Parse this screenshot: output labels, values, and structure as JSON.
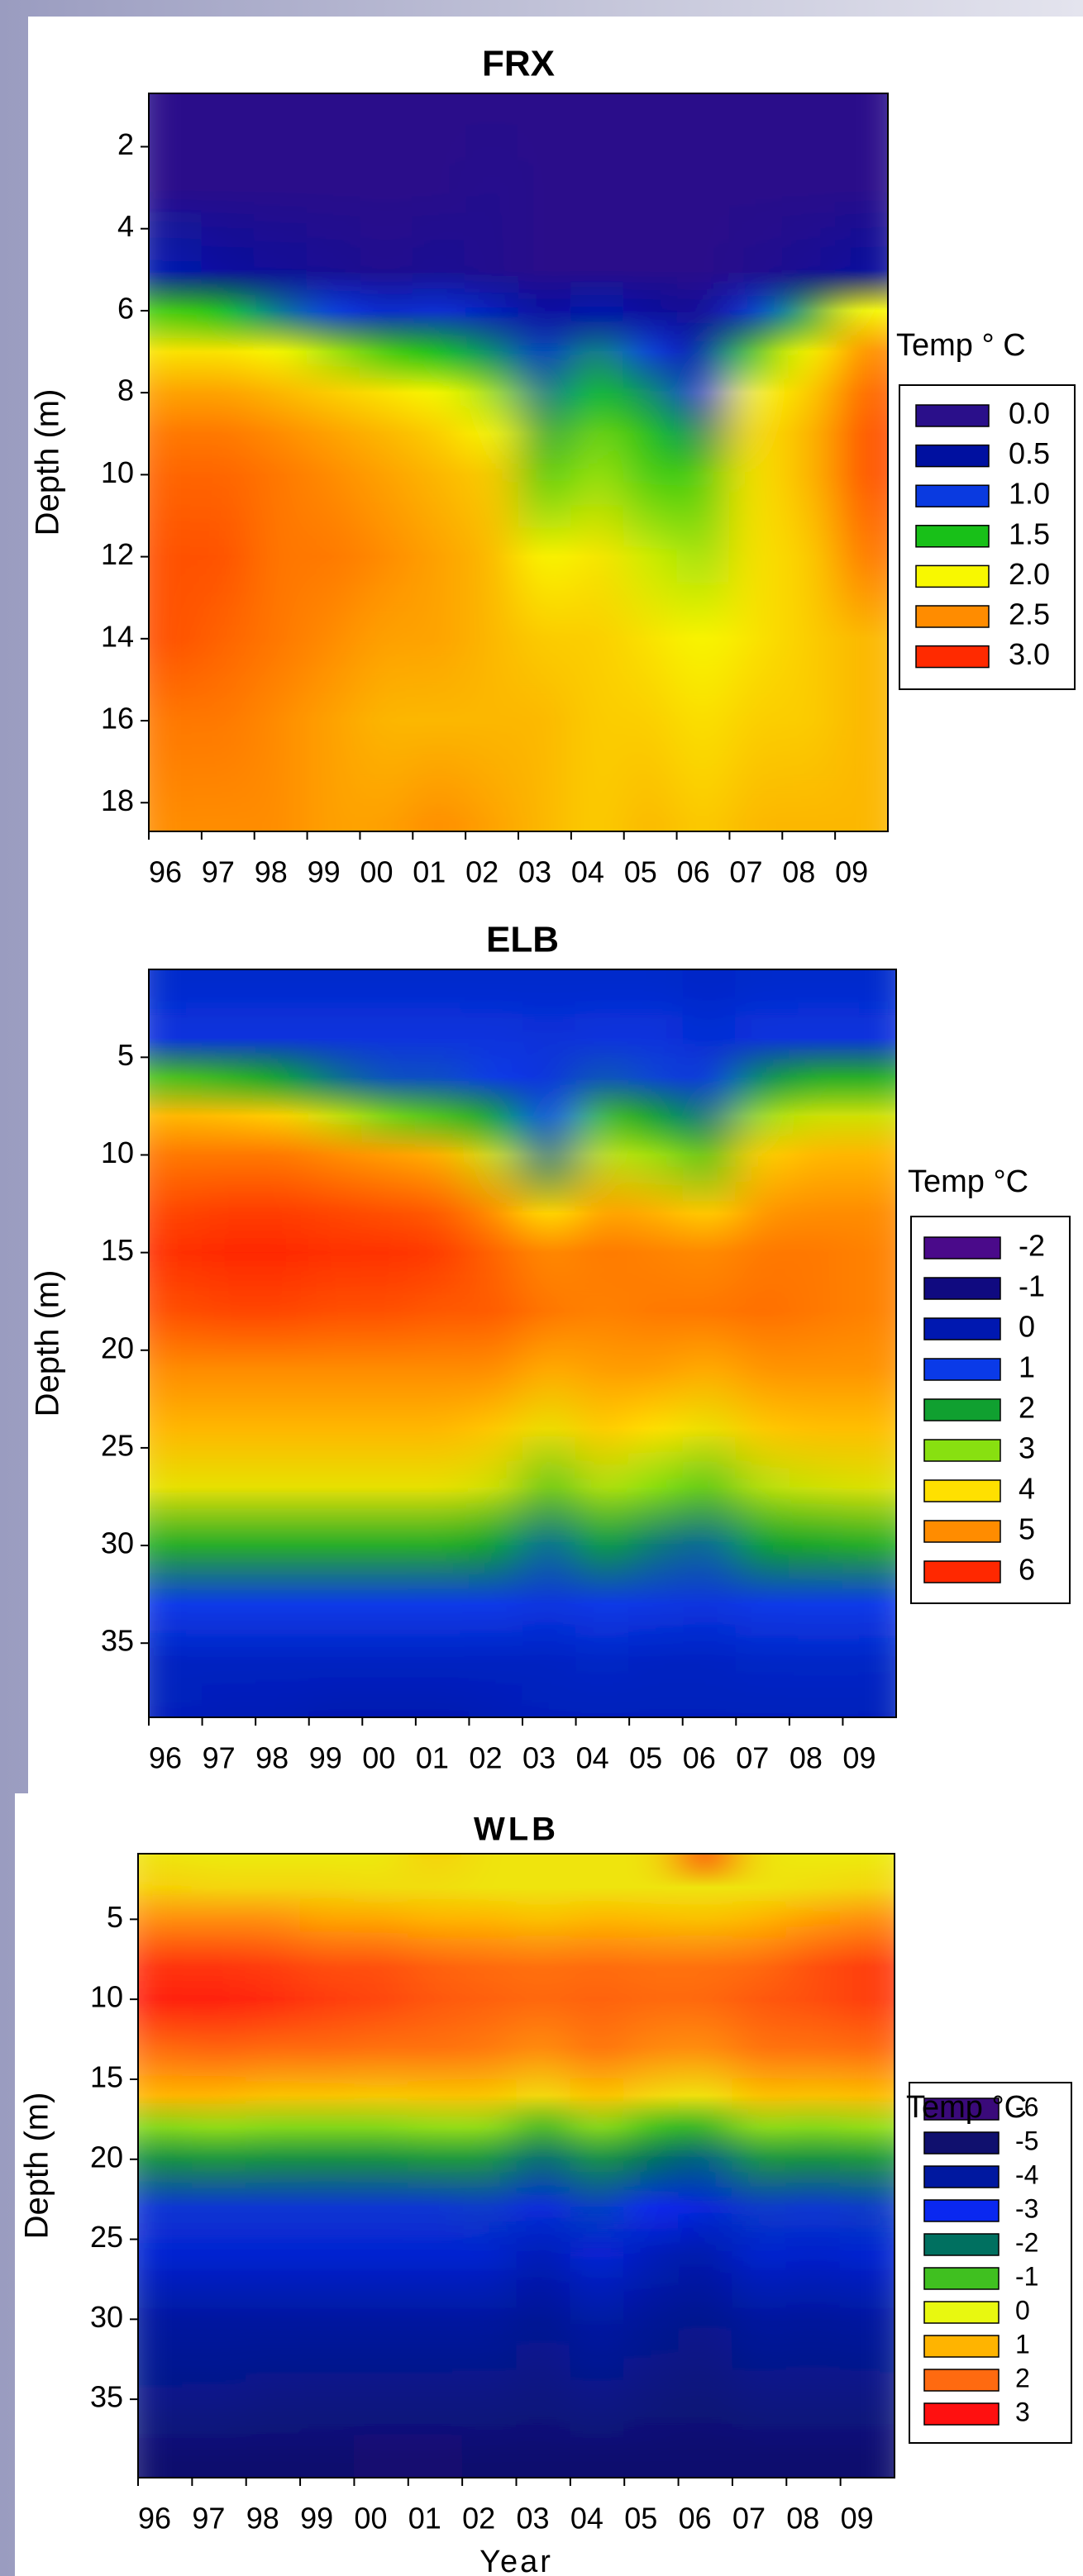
{
  "chart_data": [
    {
      "type": "contour",
      "title": "FRX",
      "ylabel": "Depth (m)",
      "legend_title": "Temp ° C",
      "categories": [
        "96",
        "97",
        "98",
        "99",
        "00",
        "01",
        "02",
        "03",
        "04",
        "05",
        "06",
        "07",
        "08",
        "09"
      ],
      "depths": [
        1,
        3,
        5,
        6,
        7,
        8,
        9,
        10,
        12,
        14,
        16,
        18.5
      ],
      "z": [
        [
          0,
          0,
          0.6,
          1.6,
          2.1,
          2.4,
          2.6,
          2.7,
          2.8,
          2.8,
          2.6,
          2.5
        ],
        [
          0,
          0,
          0.4,
          1.5,
          2.1,
          2.4,
          2.6,
          2.7,
          2.8,
          2.7,
          2.6,
          2.5
        ],
        [
          0,
          0,
          0.3,
          1.2,
          2.0,
          2.3,
          2.5,
          2.6,
          2.6,
          2.6,
          2.5,
          2.5
        ],
        [
          0,
          0,
          0.2,
          1.0,
          1.8,
          2.2,
          2.4,
          2.5,
          2.6,
          2.5,
          2.4,
          2.4
        ],
        [
          0,
          0,
          0.1,
          0.8,
          1.6,
          2.1,
          2.3,
          2.4,
          2.5,
          2.4,
          2.3,
          2.4
        ],
        [
          0,
          0,
          0.2,
          0.9,
          1.5,
          2.0,
          2.2,
          2.3,
          2.4,
          2.4,
          2.3,
          2.5
        ],
        [
          0,
          0.1,
          0.1,
          0.7,
          1.3,
          1.8,
          2.0,
          2.2,
          2.3,
          2.3,
          2.3,
          2.4
        ],
        [
          0,
          0,
          0,
          0.4,
          0.8,
          1.2,
          1.4,
          1.6,
          2.0,
          2.2,
          2.3,
          2.3
        ],
        [
          0,
          0,
          0,
          0.6,
          1.3,
          1.5,
          1.7,
          1.8,
          2.1,
          2.2,
          2.2,
          2.2
        ],
        [
          0,
          0,
          0,
          0.4,
          1.0,
          1.3,
          1.5,
          1.6,
          1.9,
          2.1,
          2.2,
          2.3
        ],
        [
          0,
          0,
          0,
          0.2,
          0.5,
          0.9,
          1.3,
          1.6,
          1.8,
          2.0,
          2.1,
          2.2
        ],
        [
          0,
          0,
          0.1,
          0.9,
          1.6,
          2.0,
          2.1,
          2.1,
          2.1,
          2.1,
          2.2,
          2.3
        ],
        [
          0,
          0,
          0.2,
          1.4,
          2.0,
          2.2,
          2.3,
          2.3,
          2.2,
          2.2,
          2.2,
          2.3
        ],
        [
          0,
          0,
          0.4,
          2.0,
          2.5,
          2.7,
          2.8,
          2.8,
          2.6,
          2.3,
          2.3,
          2.3
        ]
      ],
      "ylim": [
        0.7,
        18.7
      ],
      "yticks": [
        2,
        4,
        6,
        8,
        10,
        12,
        14,
        16,
        18
      ],
      "levels": [
        {
          "value": 0,
          "label": "0.0"
        },
        {
          "value": 0.5,
          "label": "0.5"
        },
        {
          "value": 1,
          "label": "1.0"
        },
        {
          "value": 1.5,
          "label": "1.5"
        },
        {
          "value": 2,
          "label": "2.0"
        },
        {
          "value": 2.5,
          "label": "2.5"
        },
        {
          "value": 3,
          "label": "3.0"
        }
      ],
      "level_colors": [
        "#2a0f8a",
        "#0010a0",
        "#0a3ae0",
        "#18c018",
        "#f8f800",
        "#ff8c00",
        "#ff2a00"
      ]
    },
    {
      "type": "contour",
      "title": "ELB",
      "ylabel": "Depth (m)",
      "legend_title": "Temp  °C",
      "categories": [
        "96",
        "97",
        "98",
        "99",
        "00",
        "01",
        "02",
        "03",
        "04",
        "05",
        "06",
        "07",
        "08",
        "09"
      ],
      "depths": [
        1,
        4,
        6,
        8,
        10,
        13,
        15,
        18,
        21,
        24,
        27,
        30,
        33,
        36,
        38.8
      ],
      "z": [
        [
          0.5,
          0.8,
          2.5,
          4.5,
          5.2,
          5.7,
          5.9,
          5.6,
          5.0,
          4.5,
          3.8,
          2.2,
          1.0,
          0.3,
          0.2
        ],
        [
          0.5,
          0.8,
          2.3,
          4.4,
          5.2,
          5.8,
          6.0,
          5.7,
          5.0,
          4.5,
          3.8,
          2.2,
          1.0,
          0.3,
          0.1
        ],
        [
          0.5,
          0.8,
          2.0,
          4.2,
          5.2,
          5.8,
          6.0,
          5.7,
          5.0,
          4.5,
          3.8,
          2.2,
          1.0,
          0.3,
          0.1
        ],
        [
          0.5,
          0.8,
          1.5,
          3.5,
          5.0,
          5.7,
          5.9,
          5.6,
          5.0,
          4.5,
          3.8,
          2.2,
          1.0,
          0.3,
          0.0
        ],
        [
          0.5,
          0.8,
          1.2,
          2.8,
          4.8,
          5.6,
          5.9,
          5.6,
          5.0,
          4.5,
          3.8,
          2.2,
          1.0,
          0.3,
          0.0
        ],
        [
          0.5,
          0.8,
          1.2,
          2.5,
          4.6,
          5.5,
          5.8,
          5.5,
          5.0,
          4.5,
          3.8,
          2.2,
          1.0,
          0.3,
          0.0
        ],
        [
          0.5,
          0.8,
          1.0,
          2.0,
          3.5,
          5.0,
          5.4,
          5.5,
          5.0,
          4.3,
          3.6,
          2.0,
          1.0,
          0.3,
          0.1
        ],
        [
          0.5,
          0.7,
          0.8,
          1.0,
          1.5,
          4.0,
          5.0,
          5.2,
          4.6,
          3.8,
          2.6,
          1.4,
          0.8,
          0.3,
          0.2
        ],
        [
          0.5,
          0.8,
          1.3,
          2.5,
          3.5,
          4.8,
          5.2,
          5.1,
          4.8,
          4.3,
          3.4,
          2.0,
          1.0,
          0.4,
          0.2
        ],
        [
          0.5,
          0.8,
          1.1,
          2.0,
          3.2,
          4.6,
          5.1,
          5.2,
          4.8,
          4.0,
          3.0,
          1.6,
          0.9,
          0.3,
          0.2
        ],
        [
          0.4,
          0.6,
          0.8,
          1.5,
          2.5,
          4.2,
          5.0,
          5.2,
          4.6,
          3.8,
          2.6,
          1.4,
          0.8,
          0.3,
          0.2
        ],
        [
          0.5,
          0.8,
          1.8,
          3.2,
          4.2,
          4.9,
          5.2,
          5.3,
          4.9,
          4.3,
          3.4,
          2.0,
          1.0,
          0.4,
          0.2
        ],
        [
          0.5,
          0.8,
          2.2,
          3.6,
          4.5,
          5.0,
          5.2,
          5.2,
          4.9,
          4.4,
          3.6,
          2.1,
          1.0,
          0.4,
          0.2
        ],
        [
          0.5,
          0.8,
          2.2,
          3.6,
          4.5,
          5.0,
          5.1,
          5.1,
          4.9,
          4.4,
          3.7,
          2.2,
          1.0,
          0.4,
          0.2
        ]
      ],
      "ylim": [
        0.5,
        38.8
      ],
      "yticks": [
        5,
        10,
        15,
        20,
        25,
        30,
        35
      ],
      "levels": [
        -2,
        -1,
        0,
        1,
        2,
        3,
        4,
        5,
        6
      ],
      "level_colors": [
        "#4a0a8a",
        "#100a80",
        "#0018b0",
        "#0a3ae8",
        "#10a030",
        "#88e010",
        "#ffe000",
        "#ff8c00",
        "#ff2800"
      ]
    },
    {
      "type": "contour",
      "title": "WLB",
      "ylabel": "Depth (m)",
      "legend_title": "Temp °C",
      "xlabel": "Year",
      "categories": [
        "96",
        "97",
        "98",
        "99",
        "00",
        "01",
        "02",
        "03",
        "04",
        "05",
        "06",
        "07",
        "08",
        "09"
      ],
      "depths": [
        1,
        3,
        5,
        8,
        10,
        13,
        16,
        18,
        20,
        23,
        26,
        30,
        35,
        39
      ],
      "z": [
        [
          0.3,
          0.6,
          1.5,
          2.6,
          2.8,
          2.0,
          1.0,
          -0.6,
          -1.6,
          -2.8,
          -3.4,
          -4.0,
          -4.5,
          -5.0
        ],
        [
          0.2,
          0.5,
          1.5,
          2.6,
          2.8,
          2.1,
          1.0,
          -0.5,
          -1.5,
          -2.8,
          -3.4,
          -4.0,
          -4.5,
          -5.0
        ],
        [
          0.2,
          0.5,
          1.5,
          2.5,
          2.7,
          2.0,
          0.8,
          -0.6,
          -1.6,
          -2.8,
          -3.4,
          -4.0,
          -4.6,
          -5.0
        ],
        [
          0.2,
          0.5,
          1.2,
          2.3,
          2.5,
          2.0,
          0.8,
          -0.6,
          -1.6,
          -2.8,
          -3.4,
          -4.0,
          -4.6,
          -5.0
        ],
        [
          0.2,
          0.4,
          1.2,
          2.3,
          2.4,
          1.9,
          0.7,
          -0.6,
          -1.6,
          -2.8,
          -3.4,
          -4.0,
          -4.6,
          -5.2
        ],
        [
          0.6,
          0.4,
          1.0,
          2.1,
          2.2,
          1.9,
          0.8,
          -0.5,
          -1.5,
          -2.8,
          -3.4,
          -4.0,
          -4.6,
          -5.2
        ],
        [
          0.3,
          0.3,
          1.0,
          2.0,
          2.1,
          1.8,
          0.8,
          -0.5,
          -1.5,
          -2.7,
          -3.4,
          -4.0,
          -4.6,
          -5.0
        ],
        [
          0.3,
          0.3,
          0.8,
          1.9,
          2.0,
          1.5,
          0.4,
          -1.2,
          -2.2,
          -3.2,
          -3.8,
          -4.3,
          -4.7,
          -5.0
        ],
        [
          0.3,
          0.3,
          1.0,
          2.0,
          2.1,
          1.9,
          0.9,
          -0.5,
          -1.5,
          -2.6,
          -3.3,
          -3.9,
          -4.5,
          -5.0
        ],
        [
          0.3,
          0.3,
          0.9,
          1.9,
          2.0,
          1.6,
          0.5,
          -1.0,
          -2.0,
          -3.0,
          -3.7,
          -4.2,
          -4.7,
          -5.0
        ],
        [
          2.8,
          0.3,
          0.8,
          1.9,
          2.0,
          1.5,
          0.3,
          -1.2,
          -2.3,
          -3.3,
          -3.9,
          -4.4,
          -4.8,
          -5.0
        ],
        [
          0.3,
          0.3,
          1.0,
          2.0,
          2.2,
          1.9,
          0.9,
          -0.5,
          -1.5,
          -2.7,
          -3.4,
          -4.0,
          -4.6,
          -5.0
        ],
        [
          0.2,
          0.4,
          1.3,
          2.3,
          2.3,
          1.9,
          0.8,
          -0.6,
          -1.6,
          -2.8,
          -3.5,
          -4.1,
          -4.6,
          -5.0
        ],
        [
          0.2,
          0.5,
          1.5,
          2.5,
          2.5,
          2.0,
          0.9,
          -0.5,
          -1.5,
          -2.7,
          -3.4,
          -4.0,
          -4.6,
          -5.0
        ]
      ],
      "ylim": [
        0.9,
        39.9
      ],
      "yticks": [
        5,
        10,
        15,
        20,
        25,
        30,
        35
      ],
      "levels": [
        -6,
        -5,
        -4,
        -3,
        -2,
        -1,
        0,
        1,
        2,
        3
      ],
      "level_colors": [
        "#3a0a7a",
        "#10106e",
        "#0018a0",
        "#0a28f0",
        "#007060",
        "#40c020",
        "#e8f810",
        "#ffb400",
        "#ff6a10",
        "#ff1010"
      ]
    }
  ]
}
